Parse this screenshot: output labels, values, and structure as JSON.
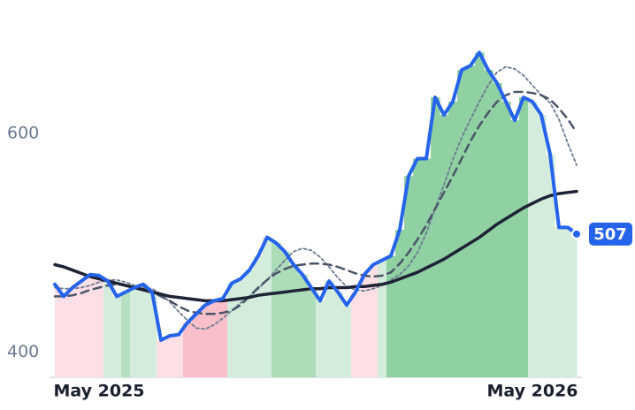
{
  "chart_data": {
    "type": "line",
    "categories": [
      null,
      null,
      null,
      null,
      null,
      "May 2025",
      null,
      null,
      null,
      null,
      null,
      null,
      null,
      null,
      null,
      null,
      null,
      null,
      null,
      null,
      null,
      null,
      null,
      null,
      null,
      null,
      null,
      null,
      null,
      null,
      null,
      null,
      null,
      null,
      null,
      null,
      null,
      null,
      null,
      null,
      null,
      null,
      null,
      null,
      null,
      null,
      null,
      null,
      null,
      null,
      null,
      null,
      null,
      null,
      "May 2026",
      null,
      null,
      null,
      null,
      null
    ],
    "series": [
      {
        "color": "#2563eb",
        "width": 4,
        "values": [
          461,
          450,
          458,
          464,
          470,
          469,
          464,
          450,
          454,
          458,
          461,
          454,
          410,
          414,
          415,
          426,
          434,
          442,
          446,
          448,
          462,
          466,
          474,
          487,
          504,
          499,
          491,
          479,
          470,
          458,
          446,
          464,
          454,
          442,
          454,
          470,
          479,
          483,
          487,
          511,
          560,
          576,
          576,
          632,
          616,
          628,
          657,
          661,
          673,
          657,
          645,
          628,
          611,
          632,
          628,
          616,
          580,
          513,
          513,
          507
        ]
      },
      {
        "color": "#1e2235",
        "width": 3.5,
        "values": [
          479,
          477,
          474,
          471,
          468,
          466,
          464,
          462,
          460,
          458,
          456,
          454,
          452,
          450,
          449,
          448,
          447,
          446,
          446,
          446,
          447,
          448,
          449,
          451,
          452,
          453,
          454,
          455,
          456,
          457,
          457,
          458,
          458,
          458,
          459,
          459,
          460,
          461,
          463,
          466,
          469,
          472,
          476,
          480,
          484,
          489,
          494,
          499,
          504,
          510,
          516,
          521,
          526,
          531,
          535,
          539,
          542,
          544,
          545,
          546
        ]
      },
      {
        "color": "#4a5568",
        "width": 2.5,
        "dash": "9 6",
        "values": [
          450,
          450,
          451,
          453,
          456,
          458,
          460,
          461,
          460,
          458,
          456,
          454,
          450,
          446,
          441,
          437,
          435,
          434,
          434,
          435,
          437,
          442,
          450,
          458,
          465,
          471,
          475,
          478,
          479,
          480,
          480,
          479,
          477,
          474,
          471,
          469,
          468,
          469,
          472,
          480,
          490,
          502,
          515,
          530,
          545,
          560,
          576,
          592,
          606,
          618,
          628,
          634,
          637,
          637,
          636,
          634,
          630,
          622,
          612,
          600
        ]
      },
      {
        "color": "#6b7a90",
        "width": 1.8,
        "dash": "3 3",
        "values": [
          458,
          457,
          457,
          458,
          460,
          463,
          465,
          465,
          463,
          460,
          458,
          457,
          452,
          445,
          436,
          428,
          421,
          420,
          424,
          430,
          437,
          444,
          450,
          457,
          465,
          474,
          483,
          491,
          494,
          492,
          486,
          477,
          467,
          459,
          456,
          455,
          457,
          460,
          465,
          470,
          478,
          490,
          508,
          530,
          552,
          575,
          595,
          612,
          628,
          643,
          655,
          660,
          658,
          652,
          643,
          634,
          627,
          612,
          590,
          570
        ]
      }
    ],
    "fill_colors": [
      "#fde0e6",
      "#fde0e6",
      "#fde0e6",
      "#fde0e6",
      "#fde0e6",
      "#fde0e6",
      "#d3ecdc",
      "#d3ecdc",
      "#b5e0c2",
      "#d3ecdc",
      "#d3ecdc",
      "#d3ecdc",
      "#fde0e6",
      "#fde0e6",
      "#fde0e6",
      "#f9c0cb",
      "#f9c0cb",
      "#f9c0cb",
      "#f9c0cb",
      "#f9c0cb",
      "#d3ecdc",
      "#d3ecdc",
      "#d3ecdc",
      "#d3ecdc",
      "#d3ecdc",
      "#acdcb8",
      "#acdcb8",
      "#acdcb8",
      "#acdcb8",
      "#acdcb8",
      "#d3ecdc",
      "#d3ecdc",
      "#d3ecdc",
      "#d3ecdc",
      "#fde0e6",
      "#fde0e6",
      "#fde0e6",
      "#d3ecdc",
      "#8fd1a3",
      "#8fd1a3",
      "#8fd1a3",
      "#8fd1a3",
      "#8fd1a3",
      "#8fd1a3",
      "#8fd1a3",
      "#8fd1a3",
      "#8fd1a3",
      "#8fd1a3",
      "#8fd1a3",
      "#8fd1a3",
      "#8fd1a3",
      "#8fd1a3",
      "#8fd1a3",
      "#8fd1a3",
      "#d3ecdc",
      "#d3ecdc",
      "#d3ecdc",
      "#d3ecdc",
      "#d3ecdc",
      "#d3ecdc"
    ],
    "ylim": [
      376,
      721
    ],
    "yticks": [
      400,
      600
    ]
  }
}
